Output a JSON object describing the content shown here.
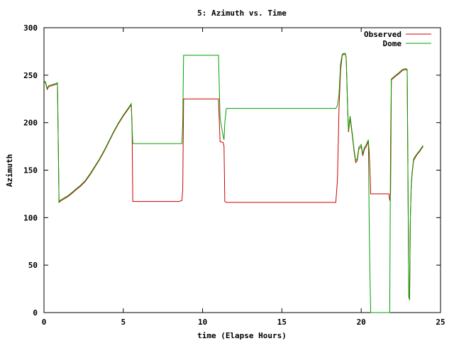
{
  "chart_data": {
    "type": "line",
    "title": "5: Azimuth vs. Time",
    "xlabel": "time (Elapse Hours)",
    "ylabel": "Azimuth",
    "xlim": [
      0,
      25
    ],
    "ylim": [
      0,
      300
    ],
    "xticks": [
      0,
      5,
      10,
      15,
      20,
      25
    ],
    "yticks": [
      0,
      50,
      100,
      150,
      200,
      250,
      300
    ],
    "grid": false,
    "legend_position": "top-right",
    "series": [
      {
        "name": "Observed",
        "color": "#cc0000",
        "x": [
          0.0,
          0.1,
          0.2,
          0.3,
          0.5,
          0.7,
          0.85,
          0.9,
          0.95,
          1.0,
          1.2,
          1.5,
          1.8,
          2.0,
          2.3,
          2.6,
          2.9,
          3.2,
          3.5,
          3.8,
          4.1,
          4.4,
          4.7,
          5.0,
          5.3,
          5.5,
          5.55,
          5.6,
          5.7,
          6.5,
          7.5,
          8.5,
          8.7,
          8.75,
          8.8,
          9.0,
          10.0,
          10.9,
          11.0,
          11.1,
          11.3,
          11.35,
          11.4,
          11.5,
          12.5,
          15.0,
          17.5,
          18.4,
          18.5,
          18.6,
          18.7,
          18.8,
          18.9,
          19.0,
          19.05,
          19.1,
          19.15,
          19.2,
          19.3,
          19.45,
          19.55,
          19.65,
          19.75,
          19.85,
          20.0,
          20.1,
          20.2,
          20.3,
          20.4,
          20.45,
          20.5,
          20.55,
          20.6,
          21.0,
          21.5,
          21.75,
          21.8,
          21.85,
          21.9,
          22.1,
          22.4,
          22.6,
          22.8,
          22.9,
          23.0,
          23.05,
          23.1,
          23.15,
          23.2,
          23.3,
          23.5,
          23.7,
          23.9
        ],
        "y": [
          243,
          242,
          235,
          238,
          239,
          240,
          241,
          180,
          116,
          117,
          119,
          122,
          126,
          129,
          133,
          138,
          145,
          153,
          161,
          170,
          180,
          190,
          199,
          207,
          214,
          219,
          200,
          117,
          117,
          117,
          117,
          117,
          118,
          130,
          225,
          225,
          225,
          225,
          225,
          180,
          179,
          175,
          117,
          116,
          116,
          116,
          116,
          116,
          140,
          215,
          255,
          271,
          272,
          272,
          268,
          240,
          210,
          190,
          205,
          185,
          170,
          158,
          160,
          172,
          175,
          165,
          172,
          174,
          178,
          180,
          170,
          150,
          125,
          125,
          125,
          125,
          118,
          125,
          245,
          248,
          252,
          255,
          256,
          255,
          16,
          14,
          100,
          130,
          145,
          160,
          166,
          170,
          175
        ]
      },
      {
        "name": "Dome",
        "color": "#00a000",
        "x": [
          0.0,
          0.1,
          0.2,
          0.3,
          0.5,
          0.7,
          0.85,
          0.9,
          0.95,
          1.0,
          1.2,
          1.5,
          1.8,
          2.0,
          2.3,
          2.6,
          2.9,
          3.2,
          3.5,
          3.8,
          4.1,
          4.4,
          4.7,
          5.0,
          5.3,
          5.5,
          5.55,
          5.6,
          5.7,
          6.5,
          7.5,
          8.5,
          8.7,
          8.75,
          8.8,
          9.0,
          10.0,
          10.9,
          11.0,
          11.1,
          11.3,
          11.35,
          11.4,
          11.5,
          12.5,
          15.0,
          17.5,
          18.4,
          18.5,
          18.6,
          18.7,
          18.8,
          18.9,
          19.0,
          19.05,
          19.1,
          19.15,
          19.2,
          19.3,
          19.45,
          19.55,
          19.65,
          19.75,
          19.85,
          20.0,
          20.1,
          20.2,
          20.3,
          20.4,
          20.45,
          20.5,
          20.55,
          20.6,
          21.0,
          21.5,
          21.75,
          21.8,
          21.85,
          21.9,
          22.1,
          22.4,
          22.6,
          22.8,
          22.9,
          23.0,
          23.05,
          23.1,
          23.15,
          23.2,
          23.3,
          23.5,
          23.7,
          23.9
        ],
        "y": [
          244,
          243,
          236,
          239,
          240,
          241,
          242,
          181,
          117,
          118,
          120,
          123,
          127,
          130,
          134,
          139,
          146,
          154,
          162,
          171,
          181,
          191,
          200,
          208,
          215,
          220,
          195,
          178,
          178,
          178,
          178,
          178,
          178,
          200,
          271,
          271,
          271,
          271,
          271,
          205,
          185,
          182,
          200,
          215,
          215,
          215,
          215,
          215,
          218,
          230,
          262,
          272,
          273,
          273,
          269,
          242,
          212,
          192,
          207,
          187,
          172,
          160,
          162,
          174,
          177,
          167,
          174,
          176,
          180,
          182,
          100,
          40,
          0,
          0,
          0,
          0,
          0,
          180,
          246,
          249,
          253,
          256,
          257,
          256,
          18,
          13,
          102,
          132,
          147,
          162,
          167,
          171,
          176
        ]
      }
    ]
  }
}
